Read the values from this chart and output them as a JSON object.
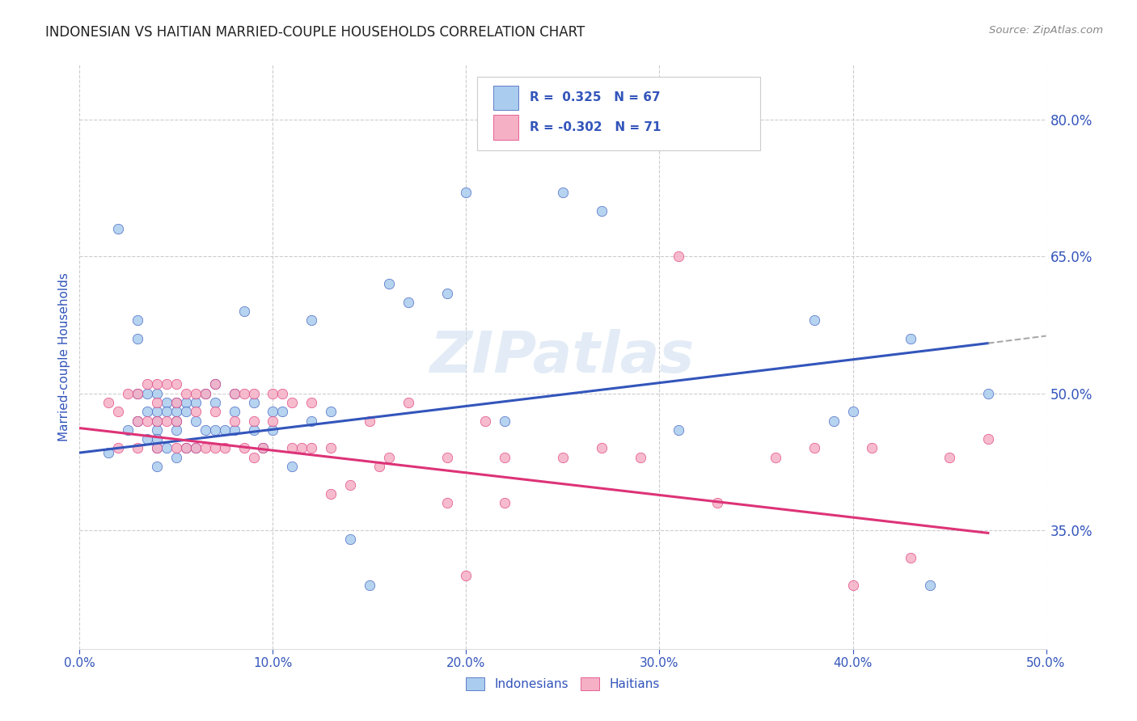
{
  "title": "INDONESIAN VS HAITIAN MARRIED-COUPLE HOUSEHOLDS CORRELATION CHART",
  "source": "Source: ZipAtlas.com",
  "ylabel": "Married-couple Households",
  "xlim": [
    0.0,
    0.5
  ],
  "ylim": [
    0.22,
    0.86
  ],
  "xtick_labels": [
    "0.0%",
    "10.0%",
    "20.0%",
    "30.0%",
    "40.0%",
    "50.0%"
  ],
  "xtick_values": [
    0.0,
    0.1,
    0.2,
    0.3,
    0.4,
    0.5
  ],
  "right_ytick_labels": [
    "80.0%",
    "65.0%",
    "50.0%",
    "35.0%"
  ],
  "right_ytick_values": [
    0.8,
    0.65,
    0.5,
    0.35
  ],
  "r_indonesian": 0.325,
  "n_indonesian": 67,
  "r_haitian": -0.302,
  "n_haitian": 71,
  "color_indonesian": "#aaccee",
  "color_haitian": "#f5b0c5",
  "line_color_indonesian": "#3355bb",
  "line_color_haitian": "#dd3377",
  "legend_label_indonesian": "Indonesians",
  "legend_label_haitian": "Haitians",
  "watermark": "ZIPatlas",
  "background_color": "#ffffff",
  "grid_color": "#cccccc",
  "title_color": "#222222",
  "axis_label_color": "#3355bb",
  "indonesian_x": [
    0.015,
    0.02,
    0.025,
    0.03,
    0.03,
    0.03,
    0.03,
    0.035,
    0.035,
    0.035,
    0.04,
    0.04,
    0.04,
    0.04,
    0.04,
    0.04,
    0.04,
    0.045,
    0.045,
    0.045,
    0.05,
    0.05,
    0.05,
    0.05,
    0.05,
    0.055,
    0.055,
    0.055,
    0.06,
    0.06,
    0.06,
    0.065,
    0.065,
    0.07,
    0.07,
    0.07,
    0.075,
    0.08,
    0.08,
    0.08,
    0.085,
    0.09,
    0.09,
    0.095,
    0.1,
    0.1,
    0.105,
    0.11,
    0.12,
    0.12,
    0.13,
    0.14,
    0.15,
    0.16,
    0.17,
    0.19,
    0.2,
    0.22,
    0.25,
    0.27,
    0.31,
    0.38,
    0.39,
    0.4,
    0.43,
    0.44,
    0.47
  ],
  "indonesian_y": [
    0.435,
    0.68,
    0.46,
    0.56,
    0.58,
    0.5,
    0.47,
    0.5,
    0.48,
    0.45,
    0.5,
    0.48,
    0.47,
    0.46,
    0.45,
    0.44,
    0.42,
    0.49,
    0.48,
    0.44,
    0.49,
    0.48,
    0.47,
    0.46,
    0.43,
    0.49,
    0.48,
    0.44,
    0.49,
    0.47,
    0.44,
    0.5,
    0.46,
    0.51,
    0.49,
    0.46,
    0.46,
    0.5,
    0.48,
    0.46,
    0.59,
    0.49,
    0.46,
    0.44,
    0.48,
    0.46,
    0.48,
    0.42,
    0.58,
    0.47,
    0.48,
    0.34,
    0.29,
    0.62,
    0.6,
    0.61,
    0.72,
    0.47,
    0.72,
    0.7,
    0.46,
    0.58,
    0.47,
    0.48,
    0.56,
    0.29,
    0.5
  ],
  "haitian_x": [
    0.015,
    0.02,
    0.02,
    0.025,
    0.03,
    0.03,
    0.03,
    0.035,
    0.035,
    0.04,
    0.04,
    0.04,
    0.04,
    0.045,
    0.045,
    0.05,
    0.05,
    0.05,
    0.05,
    0.055,
    0.055,
    0.06,
    0.06,
    0.06,
    0.065,
    0.065,
    0.07,
    0.07,
    0.07,
    0.075,
    0.08,
    0.08,
    0.085,
    0.085,
    0.09,
    0.09,
    0.09,
    0.095,
    0.1,
    0.1,
    0.105,
    0.11,
    0.11,
    0.115,
    0.12,
    0.12,
    0.13,
    0.13,
    0.14,
    0.15,
    0.155,
    0.16,
    0.17,
    0.19,
    0.19,
    0.2,
    0.21,
    0.22,
    0.22,
    0.25,
    0.27,
    0.29,
    0.31,
    0.33,
    0.36,
    0.38,
    0.4,
    0.41,
    0.43,
    0.45,
    0.47
  ],
  "haitian_y": [
    0.49,
    0.48,
    0.44,
    0.5,
    0.5,
    0.47,
    0.44,
    0.51,
    0.47,
    0.51,
    0.49,
    0.47,
    0.44,
    0.51,
    0.47,
    0.51,
    0.49,
    0.47,
    0.44,
    0.5,
    0.44,
    0.5,
    0.48,
    0.44,
    0.5,
    0.44,
    0.51,
    0.48,
    0.44,
    0.44,
    0.5,
    0.47,
    0.5,
    0.44,
    0.5,
    0.47,
    0.43,
    0.44,
    0.5,
    0.47,
    0.5,
    0.49,
    0.44,
    0.44,
    0.49,
    0.44,
    0.44,
    0.39,
    0.4,
    0.47,
    0.42,
    0.43,
    0.49,
    0.43,
    0.38,
    0.3,
    0.47,
    0.43,
    0.38,
    0.43,
    0.44,
    0.43,
    0.65,
    0.38,
    0.43,
    0.44,
    0.29,
    0.44,
    0.32,
    0.43,
    0.45
  ],
  "trend_ind_x0": 0.0,
  "trend_ind_y0": 0.435,
  "trend_ind_x1": 0.47,
  "trend_ind_y1": 0.555,
  "trend_ind_ext_x1": 0.5,
  "trend_ind_ext_y1": 0.563,
  "trend_hai_x0": 0.0,
  "trend_hai_y0": 0.462,
  "trend_hai_x1": 0.47,
  "trend_hai_y1": 0.347
}
